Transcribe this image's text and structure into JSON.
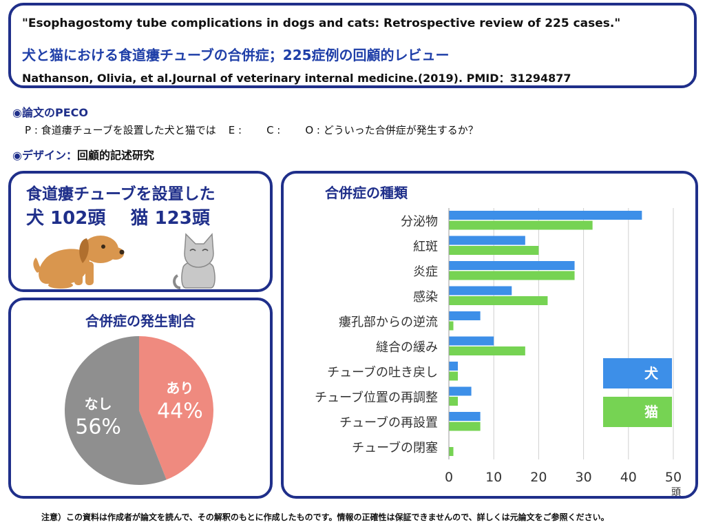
{
  "header": {
    "title_en": "\"Esophagostomy tube complications in dogs and cats: Retrospective review of 225 cases.\"",
    "title_ja": "犬と猫における食道瘻チューブの合併症；225症例の回顧的レビュー",
    "citation": "Nathanson, Olivia, et al.Journal of veterinary internal medicine.(2019). PMID：31294877"
  },
  "peco": {
    "heading": "◉論文のPECO",
    "p": "P : 食道瘻チューブを設置した犬と猫では",
    "e": "E :",
    "c": "C :",
    "o": "O : どういった合併症が発生するか？"
  },
  "design": {
    "heading": "◉デザイン：",
    "value": "回顧的記述研究"
  },
  "counts": {
    "line1": "食道瘻チューブを設置した",
    "line2": "犬 102頭    猫 123頭"
  },
  "colors": {
    "navy": "#1f2f8a",
    "dog": "#3d8fe8",
    "cat": "#76d353",
    "pie_yes": "#ef8a7f",
    "pie_no": "#8f8f8f"
  },
  "icons": {
    "dog": "dog-icon",
    "cat": "cat-icon"
  },
  "chart_data": [
    {
      "type": "pie",
      "title": "合併症の発生割合",
      "slices": [
        {
          "label": "あり",
          "value": 44,
          "value_label": "44%",
          "color": "#ef8a7f"
        },
        {
          "label": "なし",
          "value": 56,
          "value_label": "56%",
          "color": "#8f8f8f"
        }
      ]
    },
    {
      "type": "bar",
      "orientation": "horizontal",
      "title": "合併症の種類",
      "categories": [
        "分泌物",
        "紅斑",
        "炎症",
        "感染",
        "瘻孔部からの逆流",
        "縫合の緩み",
        "チューブの吐き戻し",
        "チューブ位置の再調整",
        "チューブの再設置",
        "チューブの閉塞"
      ],
      "series": [
        {
          "name": "犬",
          "color": "#3d8fe8",
          "values": [
            43,
            17,
            28,
            14,
            7,
            10,
            2,
            5,
            7,
            0
          ]
        },
        {
          "name": "猫",
          "color": "#76d353",
          "values": [
            32,
            20,
            28,
            22,
            1,
            17,
            2,
            2,
            7,
            1
          ]
        }
      ],
      "xlim": [
        0,
        50
      ],
      "xticks": [
        0,
        10,
        20,
        30,
        40,
        50
      ],
      "xunit": "頭",
      "grid": true,
      "legend": "right"
    }
  ],
  "footnote": "注意）この資料は作成者が論文を読んで、その解釈のもとに作成したものです。情報の正確性は保証できませんので、詳しくは元論文をご参照ください。"
}
